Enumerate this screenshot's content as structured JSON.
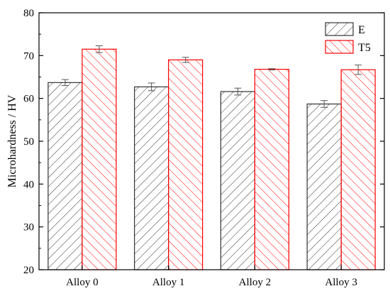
{
  "chart_data": {
    "type": "bar",
    "title": "",
    "xlabel": "",
    "ylabel": "Microhardness / HV",
    "ylim": [
      20,
      80
    ],
    "yticks": [
      20,
      30,
      40,
      50,
      60,
      70,
      80
    ],
    "categories": [
      "Alloy 0",
      "Alloy 1",
      "Alloy 2",
      "Alloy 3"
    ],
    "series": [
      {
        "name": "E",
        "values": [
          63.7,
          62.7,
          61.6,
          58.7
        ],
        "errors": [
          0.7,
          0.9,
          0.8,
          0.8
        ]
      },
      {
        "name": "T5",
        "values": [
          71.5,
          69.0,
          66.8,
          66.7
        ],
        "errors": [
          0.8,
          0.6,
          0.15,
          1.1
        ]
      }
    ],
    "grid": false,
    "legend": "top-right",
    "colors": {
      "E": "#333333",
      "T5": "#ff0000"
    }
  }
}
